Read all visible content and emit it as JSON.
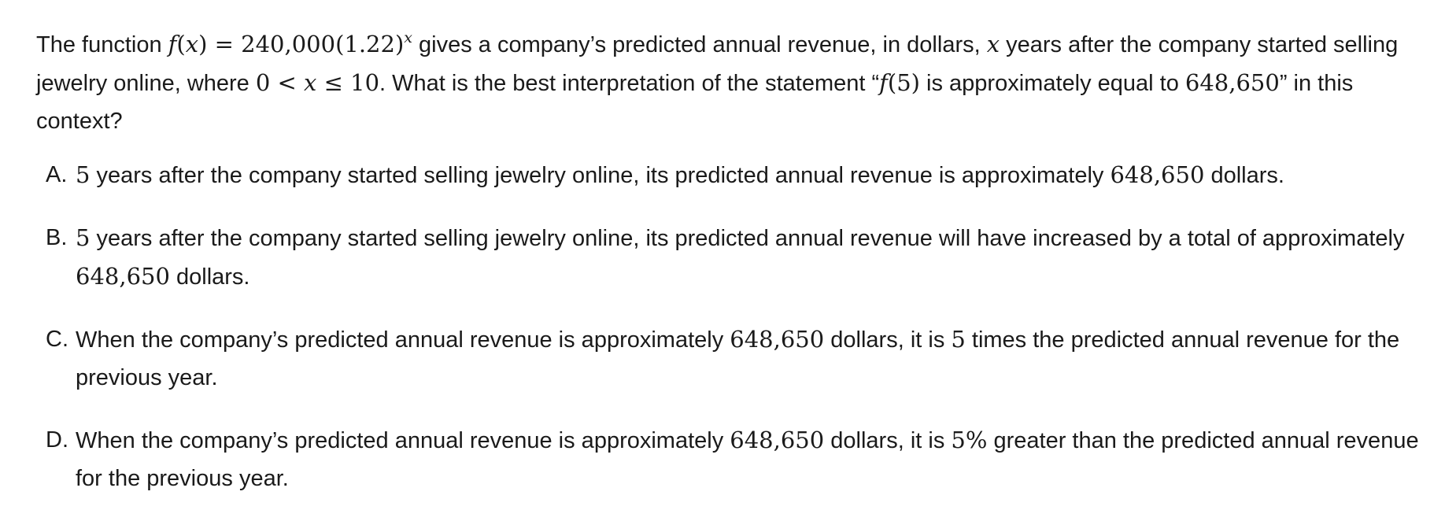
{
  "question": {
    "p1": "The function ",
    "f": "f",
    "lp": "(",
    "x1": "x",
    "rp": ")",
    "eq": " = 240,000(1.22)",
    "exp": "x",
    "p2": " gives a company’s predicted annual revenue, in dollars, ",
    "x2": "x",
    "p3": " years after the company started selling jewelry online, where ",
    "zero": "0 < ",
    "x3": "x",
    "le10": " ≤ 10",
    "p4": ". What is the best interpretation of the statement “",
    "f5": "f",
    "arg5": "(5)",
    "p5": " is approximately equal to ",
    "num": "648,650",
    "p6": "” in this context?"
  },
  "choices": [
    {
      "letter": "A.",
      "t1": "5",
      "t2": " years after the company started selling jewelry online, its predicted annual revenue is approximately ",
      "t3": "648,650",
      "t4": " dollars."
    },
    {
      "letter": "B.",
      "t1": "5",
      "t2": " years after the company started selling jewelry online, its predicted annual revenue will have increased by a total of approximately ",
      "t3": "648,650",
      "t4": " dollars."
    },
    {
      "letter": "C.",
      "t1": "When the company’s predicted annual revenue is approximately ",
      "t2": "648,650",
      "t3": " dollars, it is ",
      "t4": "5",
      "t5": " times the predicted annual revenue for the previous year."
    },
    {
      "letter": "D.",
      "t1": "When the company’s predicted annual revenue is approximately ",
      "t2": "648,650",
      "t3": " dollars, it is ",
      "t4": "5%",
      "t5": " greater than the predicted annual revenue for the previous year."
    }
  ]
}
